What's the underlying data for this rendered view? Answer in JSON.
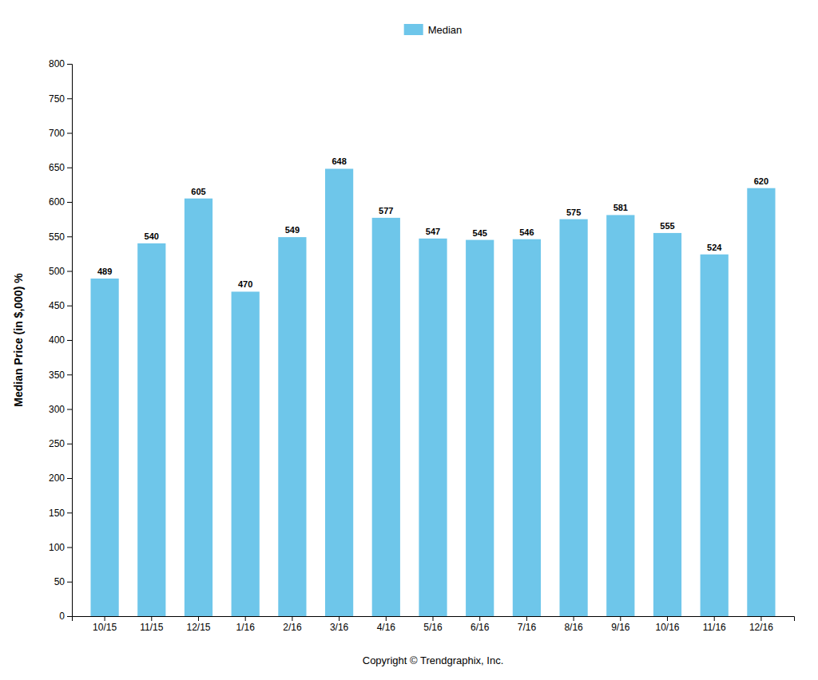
{
  "chart_data": {
    "type": "bar",
    "ylabel": "Median Price (in $,000) %",
    "categories": [
      "10/15",
      "11/15",
      "12/15",
      "1/16",
      "2/16",
      "3/16",
      "4/16",
      "5/16",
      "6/16",
      "7/16",
      "8/16",
      "9/16",
      "10/16",
      "11/16",
      "12/16"
    ],
    "series": [
      {
        "name": "Median",
        "color": "#6EC6EA",
        "values": [
          489,
          540,
          605,
          470,
          549,
          648,
          577,
          547,
          545,
          546,
          575,
          581,
          555,
          524,
          620
        ]
      }
    ],
    "ylim": [
      0,
      800
    ],
    "yticks": [
      0,
      50,
      100,
      150,
      200,
      250,
      300,
      350,
      400,
      450,
      500,
      550,
      600,
      650,
      700,
      750,
      800
    ],
    "grid": false,
    "legend": "top",
    "data_labels": true,
    "annotation": "Copyright © Trendgraphix, Inc."
  }
}
